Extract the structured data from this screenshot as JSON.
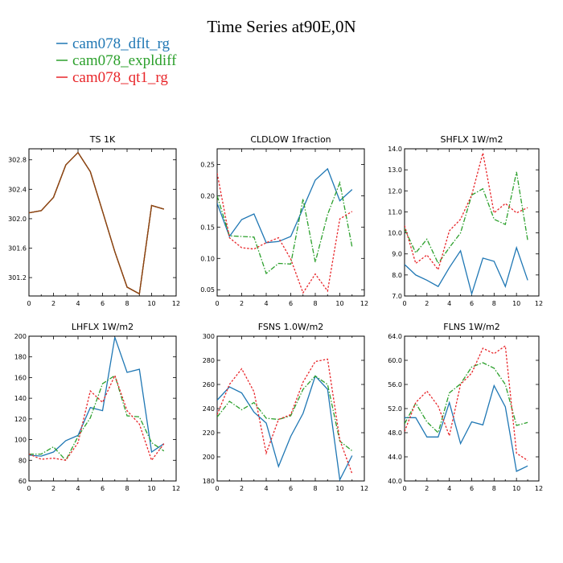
{
  "figure": {
    "title": "Time Series at90E,0N",
    "legend": [
      {
        "name": "cam078_dflt_rg",
        "color": "#1f77b4",
        "dash": "solid"
      },
      {
        "name": "cam078_expldiff",
        "color": "#2ca02c",
        "dash": "dashdot"
      },
      {
        "name": "cam078_qt1_rg",
        "color": "#e8262a",
        "dash": "dot"
      }
    ]
  },
  "chart_data": [
    {
      "type": "line",
      "title": "TS   1K",
      "x": [
        0,
        1,
        2,
        3,
        4,
        5,
        6,
        7,
        8,
        9,
        10,
        11
      ],
      "xlim": [
        0,
        12
      ],
      "xticks": [
        "0",
        "2",
        "4",
        "6",
        "8",
        "10",
        "12"
      ],
      "ylim": [
        300.95,
        302.95
      ],
      "yticks": [
        {
          "v": 301.2,
          "label": "301.2"
        },
        {
          "v": 301.6,
          "label": "301.6"
        },
        {
          "v": 302.0,
          "label": "302.0"
        },
        {
          "v": 302.4,
          "label": "302.4"
        },
        {
          "v": 302.8,
          "label": "302.8"
        }
      ],
      "series": [
        {
          "name": "cam078_dflt_rg",
          "values": [
            302.08,
            302.11,
            302.29,
            302.73,
            302.9,
            302.64,
            302.1,
            301.55,
            301.07,
            300.98,
            302.18,
            302.13
          ]
        },
        {
          "name": "cam078_expldiff",
          "values": [
            302.08,
            302.11,
            302.29,
            302.73,
            302.9,
            302.64,
            302.1,
            301.55,
            301.07,
            300.98,
            302.18,
            302.13
          ]
        },
        {
          "name": "cam078_qt1_rg",
          "values": [
            302.08,
            302.11,
            302.29,
            302.73,
            302.9,
            302.64,
            302.1,
            301.55,
            301.07,
            300.98,
            302.18,
            302.13
          ]
        }
      ],
      "overlay_color": "#8b4513"
    },
    {
      "type": "line",
      "title": "CLDLOW   1fraction",
      "x": [
        0,
        1,
        2,
        3,
        4,
        5,
        6,
        7,
        8,
        9,
        10,
        11
      ],
      "xlim": [
        0,
        12
      ],
      "xticks": [
        "0",
        "2",
        "4",
        "6",
        "8",
        "10",
        "12"
      ],
      "ylim": [
        0.04,
        0.275
      ],
      "yticks": [
        {
          "v": 0.05,
          "label": "0.05"
        },
        {
          "v": 0.1,
          "label": "0.10"
        },
        {
          "v": 0.15,
          "label": "0.15"
        },
        {
          "v": 0.2,
          "label": "0.20"
        },
        {
          "v": 0.25,
          "label": "0.25"
        }
      ],
      "series": [
        {
          "name": "cam078_dflt_rg",
          "values": [
            0.188,
            0.135,
            0.162,
            0.171,
            0.125,
            0.127,
            0.135,
            0.18,
            0.225,
            0.243,
            0.192,
            0.21
          ]
        },
        {
          "name": "cam078_expldiff",
          "values": [
            0.2,
            0.136,
            0.135,
            0.134,
            0.076,
            0.092,
            0.091,
            0.195,
            0.094,
            0.17,
            0.221,
            0.118
          ]
        },
        {
          "name": "cam078_qt1_rg",
          "values": [
            0.236,
            0.133,
            0.117,
            0.115,
            0.125,
            0.133,
            0.099,
            0.045,
            0.075,
            0.048,
            0.163,
            0.175
          ]
        }
      ]
    },
    {
      "type": "line",
      "title": "SHFLX   1W/m2",
      "x": [
        0,
        1,
        2,
        3,
        4,
        5,
        6,
        7,
        8,
        9,
        10,
        11
      ],
      "xlim": [
        0,
        12
      ],
      "xticks": [
        "0",
        "2",
        "4",
        "6",
        "8",
        "10",
        "12"
      ],
      "ylim": [
        7.0,
        14.0
      ],
      "yticks": [
        {
          "v": 7,
          "label": "7.0"
        },
        {
          "v": 8,
          "label": "8.0"
        },
        {
          "v": 9,
          "label": "9.0"
        },
        {
          "v": 10,
          "label": "10.0"
        },
        {
          "v": 11,
          "label": "11.0"
        },
        {
          "v": 12,
          "label": "12.0"
        },
        {
          "v": 13,
          "label": "13.0"
        },
        {
          "v": 14,
          "label": "14.0"
        }
      ],
      "series": [
        {
          "name": "cam078_dflt_rg",
          "values": [
            8.5,
            8.0,
            7.75,
            7.45,
            8.35,
            9.15,
            7.1,
            8.8,
            8.65,
            7.45,
            9.3,
            7.75
          ]
        },
        {
          "name": "cam078_expldiff",
          "values": [
            10.2,
            9.05,
            9.7,
            8.55,
            9.3,
            10.0,
            11.8,
            12.1,
            10.65,
            10.4,
            12.9,
            9.65
          ]
        },
        {
          "name": "cam078_qt1_rg",
          "values": [
            10.35,
            8.55,
            8.95,
            8.25,
            10.1,
            10.65,
            11.8,
            13.8,
            10.95,
            11.4,
            10.95,
            11.2
          ]
        }
      ]
    },
    {
      "type": "line",
      "title": "LHFLX   1W/m2",
      "x": [
        0,
        1,
        2,
        3,
        4,
        5,
        6,
        7,
        8,
        9,
        10,
        11
      ],
      "xlim": [
        0,
        12
      ],
      "xticks": [
        "0",
        "2",
        "4",
        "6",
        "8",
        "10",
        "12"
      ],
      "ylim": [
        60,
        200
      ],
      "yticks": [
        {
          "v": 60,
          "label": "60"
        },
        {
          "v": 80,
          "label": "80"
        },
        {
          "v": 100,
          "label": "100"
        },
        {
          "v": 120,
          "label": "120"
        },
        {
          "v": 140,
          "label": "140"
        },
        {
          "v": 160,
          "label": "160"
        },
        {
          "v": 180,
          "label": "180"
        },
        {
          "v": 200,
          "label": "200"
        }
      ],
      "series": [
        {
          "name": "cam078_dflt_rg",
          "values": [
            85,
            84,
            88,
            99,
            104,
            131,
            128,
            199,
            165,
            168,
            88,
            96
          ]
        },
        {
          "name": "cam078_expldiff",
          "values": [
            86,
            86,
            93,
            80,
            103,
            121,
            154,
            162,
            123,
            122,
            97,
            89
          ]
        },
        {
          "name": "cam078_qt1_rg",
          "values": [
            86,
            81,
            82,
            80,
            97,
            147,
            136,
            162,
            128,
            115,
            80,
            96
          ]
        }
      ]
    },
    {
      "type": "line",
      "title": "FSNS   1.0W/m2",
      "x": [
        0,
        1,
        2,
        3,
        4,
        5,
        6,
        7,
        8,
        9,
        10,
        11
      ],
      "xlim": [
        0,
        12
      ],
      "xticks": [
        "0",
        "2",
        "4",
        "6",
        "8",
        "10",
        "12"
      ],
      "ylim": [
        180,
        300
      ],
      "yticks": [
        {
          "v": 180,
          "label": "180"
        },
        {
          "v": 200,
          "label": "200"
        },
        {
          "v": 220,
          "label": "220"
        },
        {
          "v": 240,
          "label": "240"
        },
        {
          "v": 260,
          "label": "260"
        },
        {
          "v": 280,
          "label": "280"
        },
        {
          "v": 300,
          "label": "300"
        }
      ],
      "series": [
        {
          "name": "cam078_dflt_rg",
          "values": [
            247,
            258,
            253,
            237,
            228,
            192,
            217,
            236,
            267,
            256,
            181,
            201
          ]
        },
        {
          "name": "cam078_expldiff",
          "values": [
            233,
            246,
            239,
            245,
            232,
            231,
            234,
            256,
            267,
            260,
            213,
            205
          ]
        },
        {
          "name": "cam078_qt1_rg",
          "values": [
            235,
            260,
            273,
            254,
            203,
            231,
            235,
            262,
            279,
            281,
            214,
            186
          ]
        }
      ]
    },
    {
      "type": "line",
      "title": "FLNS   1W/m2",
      "x": [
        0,
        1,
        2,
        3,
        4,
        5,
        6,
        7,
        8,
        9,
        10,
        11
      ],
      "xlim": [
        0,
        12
      ],
      "xticks": [
        "0",
        "2",
        "4",
        "6",
        "8",
        "10",
        "12"
      ],
      "ylim": [
        40,
        64
      ],
      "yticks": [
        {
          "v": 40,
          "label": "40.0"
        },
        {
          "v": 44,
          "label": "44.0"
        },
        {
          "v": 48,
          "label": "48.0"
        },
        {
          "v": 52,
          "label": "52.0"
        },
        {
          "v": 56,
          "label": "56.0"
        },
        {
          "v": 60,
          "label": "60.0"
        },
        {
          "v": 64,
          "label": "64.0"
        }
      ],
      "series": [
        {
          "name": "cam078_dflt_rg",
          "values": [
            50.5,
            50.5,
            47.3,
            47.3,
            53.0,
            46.2,
            49.8,
            49.3,
            55.8,
            52.3,
            41.6,
            42.5
          ]
        },
        {
          "name": "cam078_expldiff",
          "values": [
            49.5,
            52.9,
            49.8,
            48.0,
            54.6,
            56.1,
            58.9,
            59.6,
            58.7,
            56.0,
            49.2,
            49.7
          ]
        },
        {
          "name": "cam078_qt1_rg",
          "values": [
            48.2,
            53.0,
            54.9,
            52.4,
            47.5,
            56.0,
            57.9,
            62.0,
            61.1,
            62.4,
            44.6,
            43.4
          ]
        }
      ]
    }
  ]
}
